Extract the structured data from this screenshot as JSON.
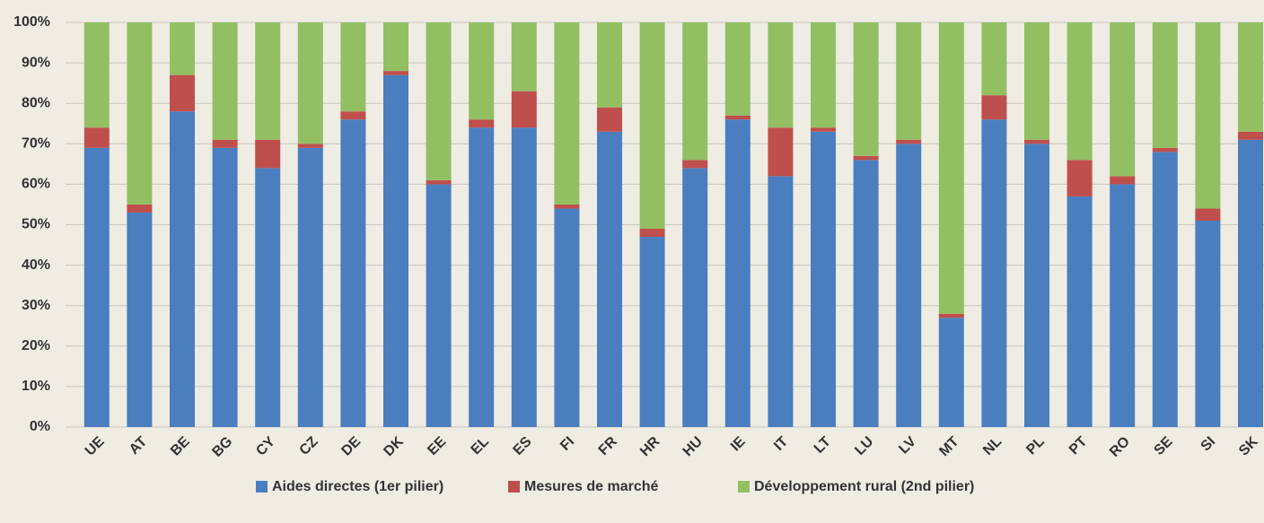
{
  "chart_data": {
    "type": "stacked_bar",
    "categories": [
      "UE",
      "AT",
      "BE",
      "BG",
      "CY",
      "CZ",
      "DE",
      "DK",
      "EE",
      "EL",
      "ES",
      "FI",
      "FR",
      "HR",
      "HU",
      "IE",
      "IT",
      "LT",
      "LU",
      "LV",
      "MT",
      "NL",
      "PL",
      "PT",
      "RO",
      "SE",
      "SI",
      "SK"
    ],
    "series": [
      {
        "name": "Aides directes (1er pilier)",
        "color": "#4a7ebf",
        "values": [
          69,
          53,
          78,
          69,
          64,
          69,
          76,
          87,
          60,
          74,
          74,
          54,
          73,
          47,
          64,
          76,
          62,
          73,
          66,
          70,
          27,
          76,
          70,
          57,
          60,
          68,
          51,
          71
        ]
      },
      {
        "name": "Mesures de marché",
        "color": "#bf4f4c",
        "values": [
          5,
          2,
          9,
          2,
          7,
          1,
          2,
          1,
          1,
          2,
          9,
          1,
          6,
          2,
          2,
          1,
          12,
          1,
          1,
          1,
          1,
          6,
          1,
          9,
          2,
          1,
          3,
          2
        ]
      },
      {
        "name": "Développement rural (2nd pilier)",
        "color": "#93bf63",
        "values": [
          26,
          45,
          13,
          29,
          29,
          30,
          22,
          12,
          39,
          24,
          17,
          45,
          21,
          51,
          34,
          23,
          26,
          26,
          33,
          29,
          72,
          18,
          29,
          34,
          38,
          31,
          46,
          27
        ]
      }
    ],
    "ylim": [
      0,
      100
    ],
    "yticks": [
      {
        "value": 0,
        "label": "0%"
      },
      {
        "value": 10,
        "label": "10%"
      },
      {
        "value": 20,
        "label": "20%"
      },
      {
        "value": 30,
        "label": "30%"
      },
      {
        "value": 40,
        "label": "40%"
      },
      {
        "value": 50,
        "label": "50%"
      },
      {
        "value": 60,
        "label": "60%"
      },
      {
        "value": 70,
        "label": "70%"
      },
      {
        "value": 80,
        "label": "80%"
      },
      {
        "value": 90,
        "label": "90%"
      },
      {
        "value": 100,
        "label": "100%"
      }
    ],
    "grid": true,
    "legend": "bottom"
  }
}
